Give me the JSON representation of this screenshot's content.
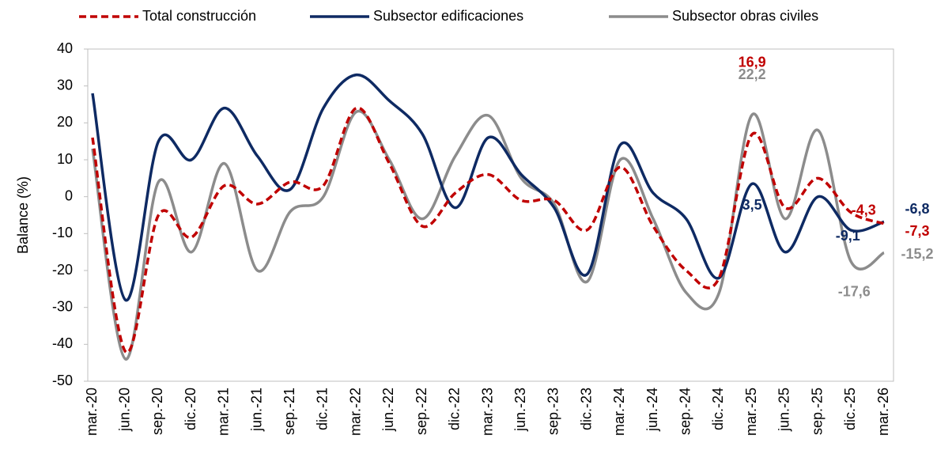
{
  "chart_data": {
    "type": "line",
    "y_label": "Balance (%)",
    "categories": [
      "mar.-20",
      "jun.-20",
      "sep.-20",
      "dic.-20",
      "mar.-21",
      "jun.-21",
      "sep.-21",
      "dic.-21",
      "mar.-22",
      "jun.-22",
      "sep.-22",
      "dic.-22",
      "mar.-23",
      "jun.-23",
      "sep.-23",
      "dic.-23",
      "mar.-24",
      "jun.-24",
      "sep.-24",
      "dic.-24",
      "mar.-25",
      "jun.-25",
      "sep.-25",
      "dic.-25",
      "mar.-26"
    ],
    "ylim": [
      -50,
      40
    ],
    "yticks": [
      -50,
      -40,
      -30,
      -20,
      -10,
      0,
      10,
      20,
      30,
      40
    ],
    "series": [
      {
        "name": "Total construcción",
        "color": "#c00000",
        "dash": true,
        "values": [
          16,
          -42,
          -5,
          -11,
          3,
          -2,
          4,
          3,
          24,
          9,
          -8,
          1,
          6,
          -1,
          -1,
          -9,
          8,
          -8,
          -20,
          -22,
          16.9,
          -3,
          5,
          -4.3,
          -7.3
        ],
        "value_labels": [
          null,
          null,
          null,
          null,
          null,
          null,
          null,
          null,
          null,
          null,
          null,
          null,
          null,
          null,
          null,
          null,
          null,
          null,
          null,
          null,
          "16,9",
          null,
          null,
          "-4,3",
          "-7,3"
        ]
      },
      {
        "name": "Subsector edificaciones",
        "color": "#0e2a63",
        "dash": false,
        "values": [
          28,
          -28,
          15,
          10,
          24,
          11,
          2,
          24,
          33,
          26,
          17,
          -3,
          16,
          6,
          -3,
          -21,
          14,
          1,
          -6,
          -22,
          3.5,
          -15,
          0,
          -9.1,
          -6.8
        ],
        "value_labels": [
          null,
          null,
          null,
          null,
          null,
          null,
          null,
          null,
          null,
          null,
          null,
          null,
          null,
          null,
          null,
          null,
          null,
          null,
          null,
          null,
          "3,5",
          null,
          null,
          "-9,1",
          "-6,8"
        ]
      },
      {
        "name": "Subsector obras civiles",
        "color": "#8c8c8c",
        "dash": false,
        "values": [
          13,
          -44,
          4,
          -15,
          9,
          -20,
          -4,
          0,
          23,
          10,
          -6,
          11,
          22,
          5,
          -2,
          -23,
          10,
          -6,
          -26,
          -26,
          22.2,
          -6,
          18,
          -17.6,
          -15.2
        ],
        "value_labels": [
          null,
          null,
          null,
          null,
          null,
          null,
          null,
          null,
          null,
          null,
          null,
          null,
          null,
          null,
          null,
          null,
          null,
          null,
          null,
          null,
          "22,2",
          null,
          null,
          "-17,6",
          "-15,2"
        ]
      }
    ]
  }
}
